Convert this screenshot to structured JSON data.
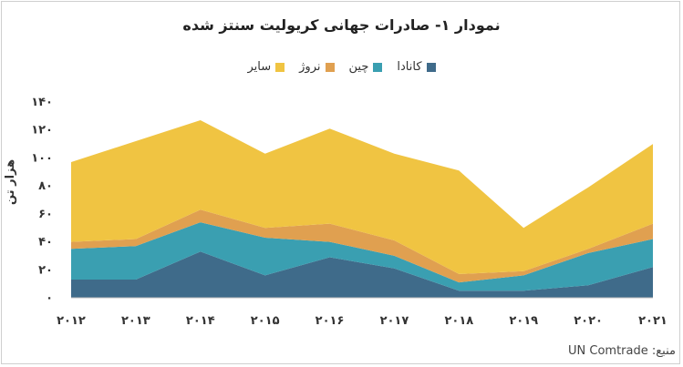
{
  "chart_data": {
    "type": "area",
    "stacked": true,
    "title": "نمودار ۱- صادرات جهانی کریولیت سنتز شده",
    "ylabel": "هزار تن",
    "xlabel": "",
    "source": "منبع: UN Comtrade",
    "ylim": [
      0,
      140
    ],
    "y_ticks": [
      "۰",
      "۲۰",
      "۴۰",
      "۶۰",
      "۸۰",
      "۱۰۰",
      "۱۲۰",
      "۱۴۰"
    ],
    "y_tick_values": [
      0,
      20,
      40,
      60,
      80,
      100,
      120,
      140
    ],
    "categories": [
      "۲۰۱۲",
      "۲۰۱۳",
      "۲۰۱۴",
      "۲۰۱۵",
      "۲۰۱۶",
      "۲۰۱۷",
      "۲۰۱۸",
      "۲۰۱۹",
      "۲۰۲۰",
      "۲۰۲۱"
    ],
    "grid": false,
    "legend_position": "top",
    "series": [
      {
        "name": "کانادا",
        "color": "#3f6b8a",
        "values": [
          13,
          13,
          33,
          16,
          29,
          21,
          5,
          5,
          9,
          22
        ]
      },
      {
        "name": "چین",
        "color": "#3a9fb1",
        "values": [
          22,
          24,
          21,
          27,
          11,
          9,
          6,
          11,
          23,
          20
        ]
      },
      {
        "name": "نروژ",
        "color": "#e0a050",
        "values": [
          5,
          5,
          9,
          7,
          13,
          11,
          6,
          3,
          3,
          11
        ]
      },
      {
        "name": "سایر",
        "color": "#f0c442",
        "values": [
          57,
          70,
          64,
          53,
          68,
          62,
          74,
          31,
          44,
          57
        ]
      }
    ],
    "legend_order": [
      "کانادا",
      "چین",
      "نروژ",
      "سایر"
    ]
  }
}
